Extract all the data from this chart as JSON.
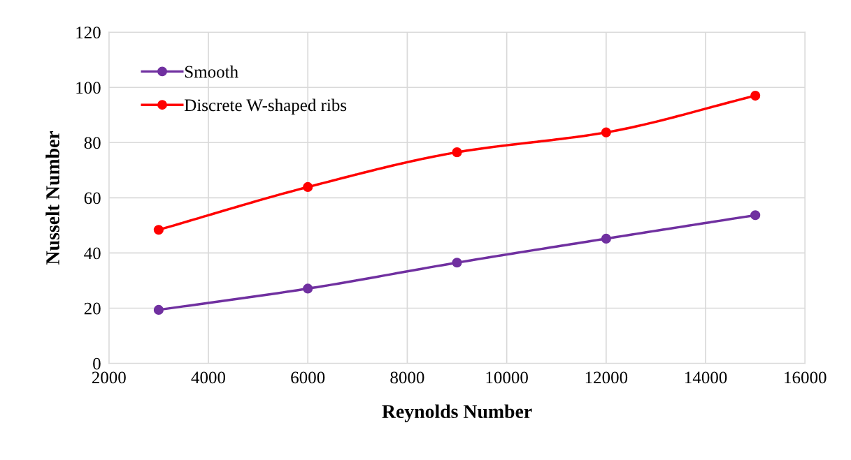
{
  "chart_data": {
    "type": "line",
    "xlabel": "Reynolds Number",
    "ylabel": "Nusselt Number",
    "x": [
      3000,
      6000,
      9000,
      12000,
      15000
    ],
    "series": [
      {
        "name": "Smooth",
        "color": "#7030a0",
        "values": [
          19.4,
          27.1,
          36.5,
          45.2,
          53.7
        ]
      },
      {
        "name": "Discrete W-shaped ribs",
        "color": "#ff0000",
        "values": [
          48.4,
          63.9,
          76.5,
          83.7,
          97.0
        ]
      }
    ],
    "xlim": [
      2000,
      16000
    ],
    "xticks": [
      2000,
      4000,
      6000,
      8000,
      10000,
      12000,
      14000,
      16000
    ],
    "ylim": [
      0,
      120
    ],
    "yticks": [
      0,
      20,
      40,
      60,
      80,
      100,
      120
    ],
    "grid": true,
    "legend": "top left",
    "marker": "circle",
    "line_style": "solid"
  }
}
